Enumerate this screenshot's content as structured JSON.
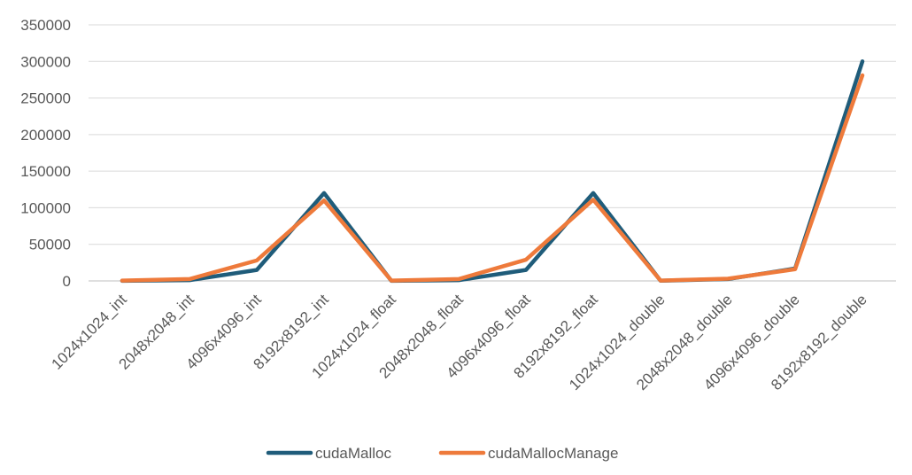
{
  "chart_data": {
    "type": "line",
    "title": "",
    "xlabel": "",
    "ylabel": "",
    "ylim": [
      0,
      350000
    ],
    "yticks": [
      0,
      50000,
      100000,
      150000,
      200000,
      250000,
      300000,
      350000
    ],
    "ytick_labels": [
      "0",
      "50000",
      "100000",
      "150000",
      "200000",
      "250000",
      "300000",
      "350000"
    ],
    "grid": true,
    "legend_position": "bottom",
    "categories": [
      "1024x1024_int",
      "2048x2048_int",
      "4096x4096_int",
      "8192x8192_int",
      "1024x1024_float",
      "2048x2048_float",
      "4096x4096_float",
      "8192x8192_float",
      "1024x1024_double",
      "2048x2048_double",
      "4096x4096_double",
      "8192x8192_double"
    ],
    "series": [
      {
        "name": "cudaMalloc",
        "color": "#1f5c7a",
        "values": [
          200,
          1000,
          15000,
          120000,
          200,
          1000,
          15000,
          120000,
          300,
          2500,
          17000,
          300000
        ]
      },
      {
        "name": "cudaMallocManage",
        "color": "#ee7a3b",
        "values": [
          500,
          2500,
          28000,
          110000,
          500,
          2500,
          29000,
          111000,
          500,
          3000,
          16000,
          281000
        ]
      }
    ]
  }
}
